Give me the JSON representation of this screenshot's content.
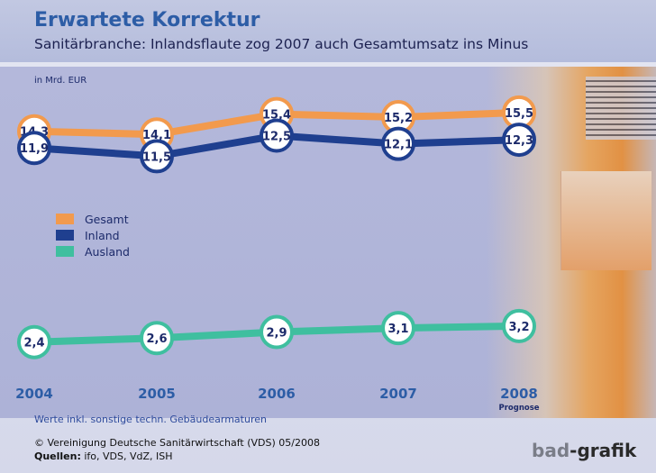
{
  "header": {
    "title": "Erwartete Korrektur",
    "subtitle": "Sanitärbranche: Inlandsflaute zog 2007 auch Gesamtumsatz ins Minus"
  },
  "unit_label": "in Mrd. EUR",
  "footer": {
    "note": "Werte inkl. sonstige techn. Gebäudearmaturen",
    "copyright": "© Vereinigung Deutsche Sanitärwirtschaft (VDS) 05/2008",
    "sources_label": "Quellen:",
    "sources_text": " ifo, VDS, VdZ, ISH"
  },
  "brand": {
    "part1": "bad",
    "part2": "-grafik"
  },
  "chart_data": {
    "type": "line",
    "categories": [
      "2004",
      "2005",
      "2006",
      "2007",
      "2008"
    ],
    "category_sublabels": [
      "",
      "",
      "",
      "",
      "Prognose"
    ],
    "series": [
      {
        "name": "Gesamt",
        "color": "#f29a4d",
        "values": [
          14.3,
          14.1,
          15.4,
          15.2,
          15.5
        ],
        "labels": [
          "14,3",
          "14,1",
          "15,4",
          "15,2",
          "15,5"
        ]
      },
      {
        "name": "Inland",
        "color": "#1f3f8f",
        "values": [
          11.9,
          11.5,
          12.5,
          12.1,
          12.3
        ],
        "labels": [
          "11,9",
          "11,5",
          "12,5",
          "12,1",
          "12,3"
        ]
      },
      {
        "name": "Ausland",
        "color": "#3fbf9f",
        "values": [
          2.4,
          2.6,
          2.9,
          3.1,
          3.2
        ],
        "labels": [
          "2,4",
          "2,6",
          "2,9",
          "3,1",
          "3,2"
        ]
      }
    ],
    "legend_position": "left-middle",
    "grid": false
  }
}
